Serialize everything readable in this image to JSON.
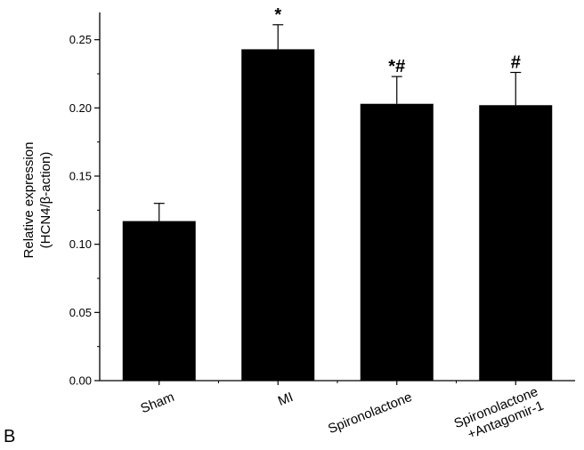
{
  "panel_label": "B",
  "chart_data": {
    "type": "bar",
    "categories": [
      "Sham",
      "MI",
      "Spironolactone",
      "Spironolactone\n+Antagomir-1"
    ],
    "values": [
      0.117,
      0.243,
      0.203,
      0.202
    ],
    "errors": [
      0.013,
      0.018,
      0.02,
      0.024
    ],
    "annotations": [
      "",
      "*",
      "*#",
      "#"
    ],
    "ylabel_lines": [
      "Relative expression",
      "(HCN4/β-action)"
    ],
    "ylim": [
      0,
      0.27
    ],
    "yticks": [
      "0.00",
      "0.05",
      "0.10",
      "0.15",
      "0.20",
      "0.25"
    ],
    "bar_color": "#000000",
    "grid": false
  }
}
